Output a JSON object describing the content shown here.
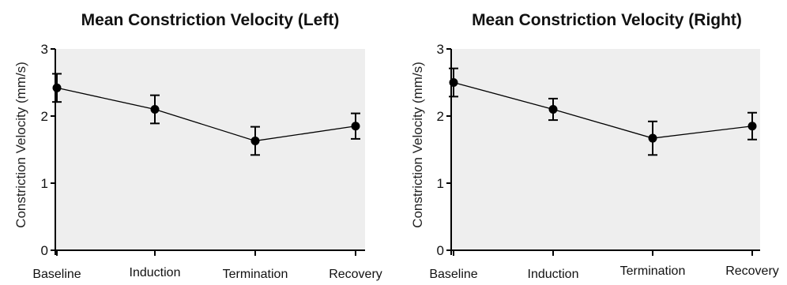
{
  "chart_data": [
    {
      "type": "line",
      "title": "Mean Constriction Velocity (Left)",
      "ylabel": "Constriction Velocity (mm/s)",
      "xlabel": "",
      "categories": [
        "Baseline",
        "Induction",
        "Termination",
        "Recovery"
      ],
      "values": [
        2.42,
        2.1,
        1.63,
        1.85
      ],
      "error": [
        0.21,
        0.21,
        0.21,
        0.19
      ],
      "ylim": [
        0,
        3
      ],
      "yticks": [
        "0",
        "1",
        "2",
        "3"
      ],
      "grid": false,
      "background": "#eeeeee"
    },
    {
      "type": "line",
      "title": "Mean Constriction Velocity (Right)",
      "ylabel": "Constriction Velocity (mm/s)",
      "xlabel": "",
      "categories": [
        "Baseline",
        "Induction",
        "Termination",
        "Recovery"
      ],
      "values": [
        2.5,
        2.1,
        1.67,
        1.85
      ],
      "error": [
        0.21,
        0.16,
        0.25,
        0.2
      ],
      "ylim": [
        0,
        3
      ],
      "yticks": [
        "0",
        "1",
        "2",
        "3"
      ],
      "grid": false,
      "background": "#eeeeee"
    }
  ]
}
